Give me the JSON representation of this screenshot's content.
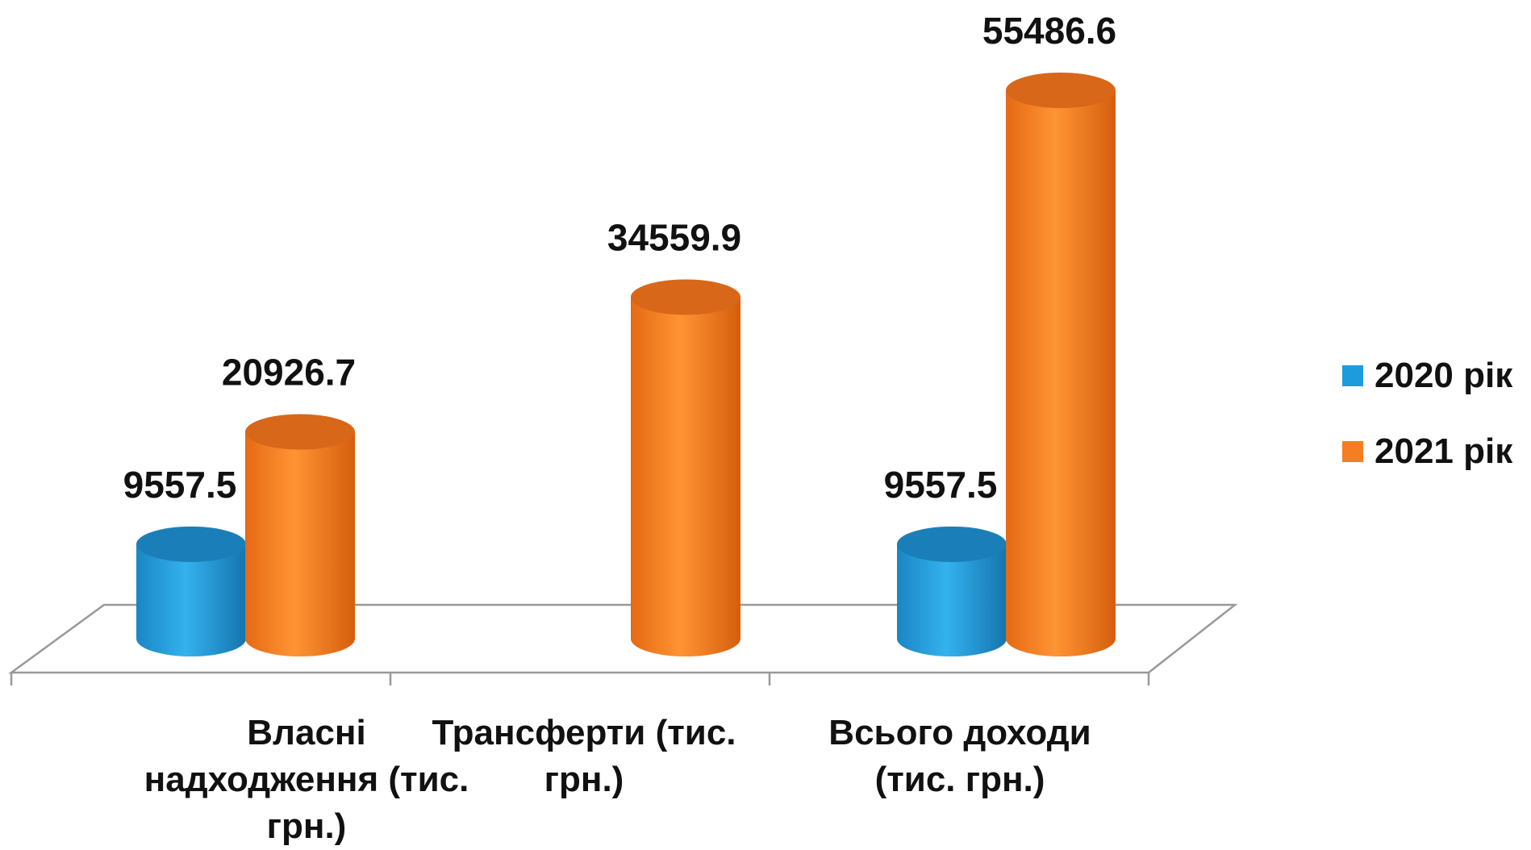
{
  "chart_data": {
    "type": "bar",
    "title": "",
    "xlabel": "",
    "ylabel": "",
    "categories": [
      "Власні надходження (тис. грн.)",
      "Трансферти (тис. грн.)",
      "Всього доходи (тис. грн.)"
    ],
    "series": [
      {
        "name": "2020 рік",
        "values": [
          9557.5,
          null,
          9557.5
        ],
        "labels": [
          "9557.5",
          "",
          "9557.5"
        ],
        "color": "#1e9bdc"
      },
      {
        "name": "2021 рік",
        "values": [
          20926.7,
          34559.9,
          55486.6
        ],
        "labels": [
          "20926.7",
          "34559.9",
          "55486.6"
        ],
        "color": "#f57d22"
      }
    ],
    "ylim": [
      0,
      55486.6
    ],
    "grid": false,
    "legend_position": "right",
    "bar_shape": "cylinder-3d"
  }
}
